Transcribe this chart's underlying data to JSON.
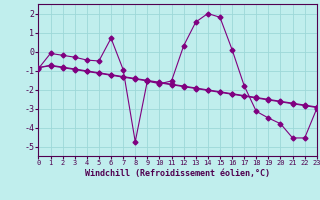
{
  "xlabel": "Windchill (Refroidissement éolien,°C)",
  "background_color": "#c0eeed",
  "grid_color": "#9dd8d8",
  "line_color": "#800080",
  "xlim": [
    0,
    23
  ],
  "ylim": [
    -5.5,
    2.5
  ],
  "yticks": [
    -5,
    -4,
    -3,
    -2,
    -1,
    0,
    1,
    2
  ],
  "xticks": [
    0,
    1,
    2,
    3,
    4,
    5,
    6,
    7,
    8,
    9,
    10,
    11,
    12,
    13,
    14,
    15,
    16,
    17,
    18,
    19,
    20,
    21,
    22,
    23
  ],
  "series1_x": [
    0,
    1,
    2,
    3,
    4,
    5,
    6,
    7,
    8,
    9,
    10,
    11,
    12,
    13,
    14,
    15,
    16,
    17,
    18,
    19,
    20,
    21,
    22,
    23
  ],
  "series1_y": [
    -0.9,
    -0.1,
    -0.2,
    -0.3,
    -0.45,
    -0.5,
    0.7,
    -0.95,
    -4.75,
    -1.55,
    -1.7,
    -1.55,
    0.3,
    1.55,
    2.0,
    1.8,
    0.1,
    -1.8,
    -3.15,
    -3.5,
    -3.8,
    -4.55,
    -4.55,
    -3.0
  ],
  "series2_x": [
    0,
    1,
    2,
    3,
    4,
    5,
    6,
    7,
    8,
    9,
    10,
    11,
    12,
    13,
    14,
    15,
    16,
    17,
    18,
    19,
    20,
    21,
    22,
    23
  ],
  "series2_y": [
    -0.85,
    -0.75,
    -0.85,
    -0.95,
    -1.05,
    -1.15,
    -1.25,
    -1.35,
    -1.45,
    -1.55,
    -1.65,
    -1.75,
    -1.85,
    -1.95,
    -2.05,
    -2.15,
    -2.25,
    -2.35,
    -2.45,
    -2.55,
    -2.65,
    -2.75,
    -2.85,
    -2.95
  ],
  "series3_x": [
    0,
    1,
    2,
    3,
    4,
    5,
    6,
    7,
    8,
    9,
    10,
    11,
    12,
    13,
    14,
    15,
    16,
    17,
    18,
    19,
    20,
    21,
    22,
    23
  ],
  "series3_y": [
    -0.85,
    -0.72,
    -0.82,
    -0.92,
    -1.02,
    -1.12,
    -1.22,
    -1.32,
    -1.42,
    -1.52,
    -1.62,
    -1.72,
    -1.82,
    -1.92,
    -2.02,
    -2.12,
    -2.22,
    -2.32,
    -2.42,
    -2.52,
    -2.62,
    -2.72,
    -2.82,
    -2.92
  ],
  "markersize": 2.5,
  "linewidth": 0.8
}
